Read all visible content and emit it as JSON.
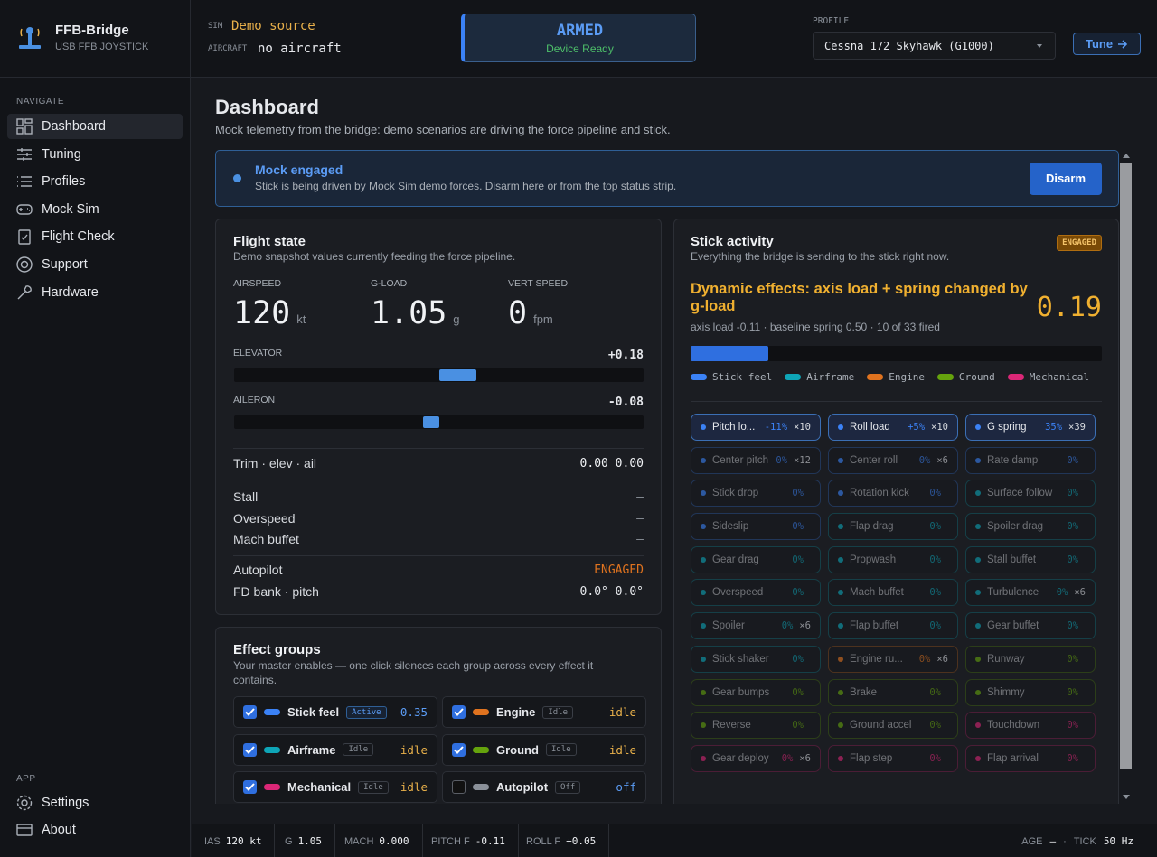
{
  "app": {
    "name": "FFB-Bridge",
    "subtitle": "USB FFB JOYSTICK"
  },
  "status": {
    "sim_label": "SIM",
    "sim": "Demo source",
    "aircraft_label": "AIRCRAFT",
    "aircraft": "no aircraft",
    "state": "ARMED",
    "state_detail": "Device Ready",
    "profile_label": "PROFILE",
    "profile": "Cessna 172 Skyhawk (G1000)",
    "tune": "Tune"
  },
  "nav": {
    "heading": "NAVIGATE",
    "items": [
      "Dashboard",
      "Tuning",
      "Profiles",
      "Mock Sim",
      "Flight Check",
      "Support",
      "Hardware"
    ],
    "app_heading": "APP",
    "app_items": [
      "Settings",
      "About"
    ]
  },
  "page": {
    "title": "Dashboard",
    "subtitle": "Mock telemetry from the bridge: demo scenarios are driving the force pipeline and stick."
  },
  "banner": {
    "title": "Mock engaged",
    "text": "Stick is being driven by Mock Sim demo forces. Disarm here or from the top status strip.",
    "button": "Disarm"
  },
  "flight_state": {
    "title": "Flight state",
    "subtitle": "Demo snapshot values currently feeding the force pipeline.",
    "metrics": [
      {
        "label": "AIRSPEED",
        "value": "120",
        "unit": "kt"
      },
      {
        "label": "G-LOAD",
        "value": "1.05",
        "unit": "g"
      },
      {
        "label": "VERT SPEED",
        "value": "0",
        "unit": "fpm"
      }
    ],
    "axes": [
      {
        "label": "ELEVATOR",
        "value": "+0.18"
      },
      {
        "label": "AILERON",
        "value": "-0.08"
      }
    ],
    "trim": {
      "label": "Trim · elev · ail",
      "value": "0.00 0.00"
    },
    "warnings": [
      {
        "label": "Stall",
        "value": "–"
      },
      {
        "label": "Overspeed",
        "value": "–"
      },
      {
        "label": "Mach buffet",
        "value": "—"
      }
    ],
    "autopilot": [
      {
        "label": "Autopilot",
        "value": "ENGAGED",
        "color": "#e0731f"
      },
      {
        "label": "FD bank · pitch",
        "value": "0.0° 0.0°",
        "color": "#e6e8ec"
      }
    ]
  },
  "effect_groups": {
    "title": "Effect groups",
    "subtitle": "Your master enables — one click silences each group across every effect it contains.",
    "groups": [
      {
        "name": "Stick feel",
        "status": "Active",
        "value": "0.35",
        "checked": true,
        "color": "#3b82f6",
        "value_color": "#5b9cf5"
      },
      {
        "name": "Engine",
        "status": "Idle",
        "value": "idle",
        "checked": true,
        "color": "#e0731f",
        "value_color": "#e8b04a"
      },
      {
        "name": "Airframe",
        "status": "Idle",
        "value": "idle",
        "checked": true,
        "color": "#0ea5b7",
        "value_color": "#e8b04a"
      },
      {
        "name": "Ground",
        "status": "Idle",
        "value": "idle",
        "checked": true,
        "color": "#65a30d",
        "value_color": "#e8b04a"
      },
      {
        "name": "Mechanical",
        "status": "Idle",
        "value": "idle",
        "checked": true,
        "color": "#db2777",
        "value_color": "#e8b04a"
      },
      {
        "name": "Autopilot",
        "status": "Off",
        "value": "off",
        "checked": false,
        "color": "#8a9099",
        "value_color": "#5b9cf5"
      }
    ]
  },
  "activity": {
    "title": "Stick activity",
    "subtitle": "Everything the bridge is sending to the stick right now.",
    "badge": "ENGAGED",
    "headline": "Dynamic effects: axis load + spring changed by g-load",
    "value": "0.19",
    "detail": "axis load -0.11 · baseline spring 0.50 · 10 of 33 fired",
    "legend": [
      {
        "name": "Stick feel",
        "color": "#3b82f6"
      },
      {
        "name": "Airframe",
        "color": "#0ea5b7"
      },
      {
        "name": "Engine",
        "color": "#e0731f"
      },
      {
        "name": "Ground",
        "color": "#65a30d"
      },
      {
        "name": "Mechanical",
        "color": "#db2777"
      }
    ],
    "effects": [
      {
        "name": "Pitch lo...",
        "pct": "-11%",
        "count": "×10",
        "color": "#3b82f6",
        "active": true
      },
      {
        "name": "Roll load",
        "pct": "+5%",
        "count": "×10",
        "color": "#3b82f6",
        "active": true
      },
      {
        "name": "G spring",
        "pct": "35%",
        "count": "×39",
        "color": "#3b82f6",
        "active": true
      },
      {
        "name": "Center pitch",
        "pct": "0%",
        "count": "×12",
        "color": "#3b82f6"
      },
      {
        "name": "Center roll",
        "pct": "0%",
        "count": "×6",
        "color": "#3b82f6"
      },
      {
        "name": "Rate damp",
        "pct": "0%",
        "color": "#3b82f6"
      },
      {
        "name": "Stick drop",
        "pct": "0%",
        "color": "#3b82f6"
      },
      {
        "name": "Rotation kick",
        "pct": "0%",
        "color": "#3b82f6"
      },
      {
        "name": "Surface follow",
        "pct": "0%",
        "color": "#0ea5b7"
      },
      {
        "name": "Sideslip",
        "pct": "0%",
        "color": "#3b82f6"
      },
      {
        "name": "Flap drag",
        "pct": "0%",
        "color": "#0ea5b7"
      },
      {
        "name": "Spoiler drag",
        "pct": "0%",
        "color": "#0ea5b7"
      },
      {
        "name": "Gear drag",
        "pct": "0%",
        "color": "#0ea5b7"
      },
      {
        "name": "Propwash",
        "pct": "0%",
        "color": "#0ea5b7"
      },
      {
        "name": "Stall buffet",
        "pct": "0%",
        "color": "#0ea5b7"
      },
      {
        "name": "Overspeed",
        "pct": "0%",
        "color": "#0ea5b7"
      },
      {
        "name": "Mach buffet",
        "pct": "0%",
        "color": "#0ea5b7"
      },
      {
        "name": "Turbulence",
        "pct": "0%",
        "count": "×6",
        "color": "#0ea5b7"
      },
      {
        "name": "Spoiler",
        "pct": "0%",
        "count": "×6",
        "color": "#0ea5b7"
      },
      {
        "name": "Flap buffet",
        "pct": "0%",
        "color": "#0ea5b7"
      },
      {
        "name": "Gear buffet",
        "pct": "0%",
        "color": "#0ea5b7"
      },
      {
        "name": "Stick shaker",
        "pct": "0%",
        "color": "#0ea5b7"
      },
      {
        "name": "Engine ru...",
        "pct": "0%",
        "count": "×6",
        "color": "#e0731f"
      },
      {
        "name": "Runway",
        "pct": "0%",
        "color": "#65a30d"
      },
      {
        "name": "Gear bumps",
        "pct": "0%",
        "color": "#65a30d"
      },
      {
        "name": "Brake",
        "pct": "0%",
        "color": "#65a30d"
      },
      {
        "name": "Shimmy",
        "pct": "0%",
        "color": "#65a30d"
      },
      {
        "name": "Reverse",
        "pct": "0%",
        "color": "#65a30d"
      },
      {
        "name": "Ground accel",
        "pct": "0%",
        "color": "#65a30d"
      },
      {
        "name": "Touchdown",
        "pct": "0%",
        "color": "#db2777"
      },
      {
        "name": "Gear deploy",
        "pct": "0%",
        "count": "×6",
        "color": "#db2777"
      },
      {
        "name": "Flap step",
        "pct": "0%",
        "color": "#db2777"
      },
      {
        "name": "Flap arrival",
        "pct": "0%",
        "color": "#db2777"
      }
    ]
  },
  "footer": {
    "left": [
      {
        "label": "IAS",
        "value": "120 kt"
      },
      {
        "label": "G",
        "value": "1.05"
      },
      {
        "label": "MACH",
        "value": "0.000"
      },
      {
        "label": "PITCH F",
        "value": "-0.11"
      },
      {
        "label": "ROLL F",
        "value": "+0.05"
      }
    ],
    "right": [
      {
        "label": "AGE",
        "value": "—"
      },
      {
        "label": "·",
        "value": ""
      },
      {
        "label": "TICK",
        "value": "50 Hz"
      }
    ]
  }
}
